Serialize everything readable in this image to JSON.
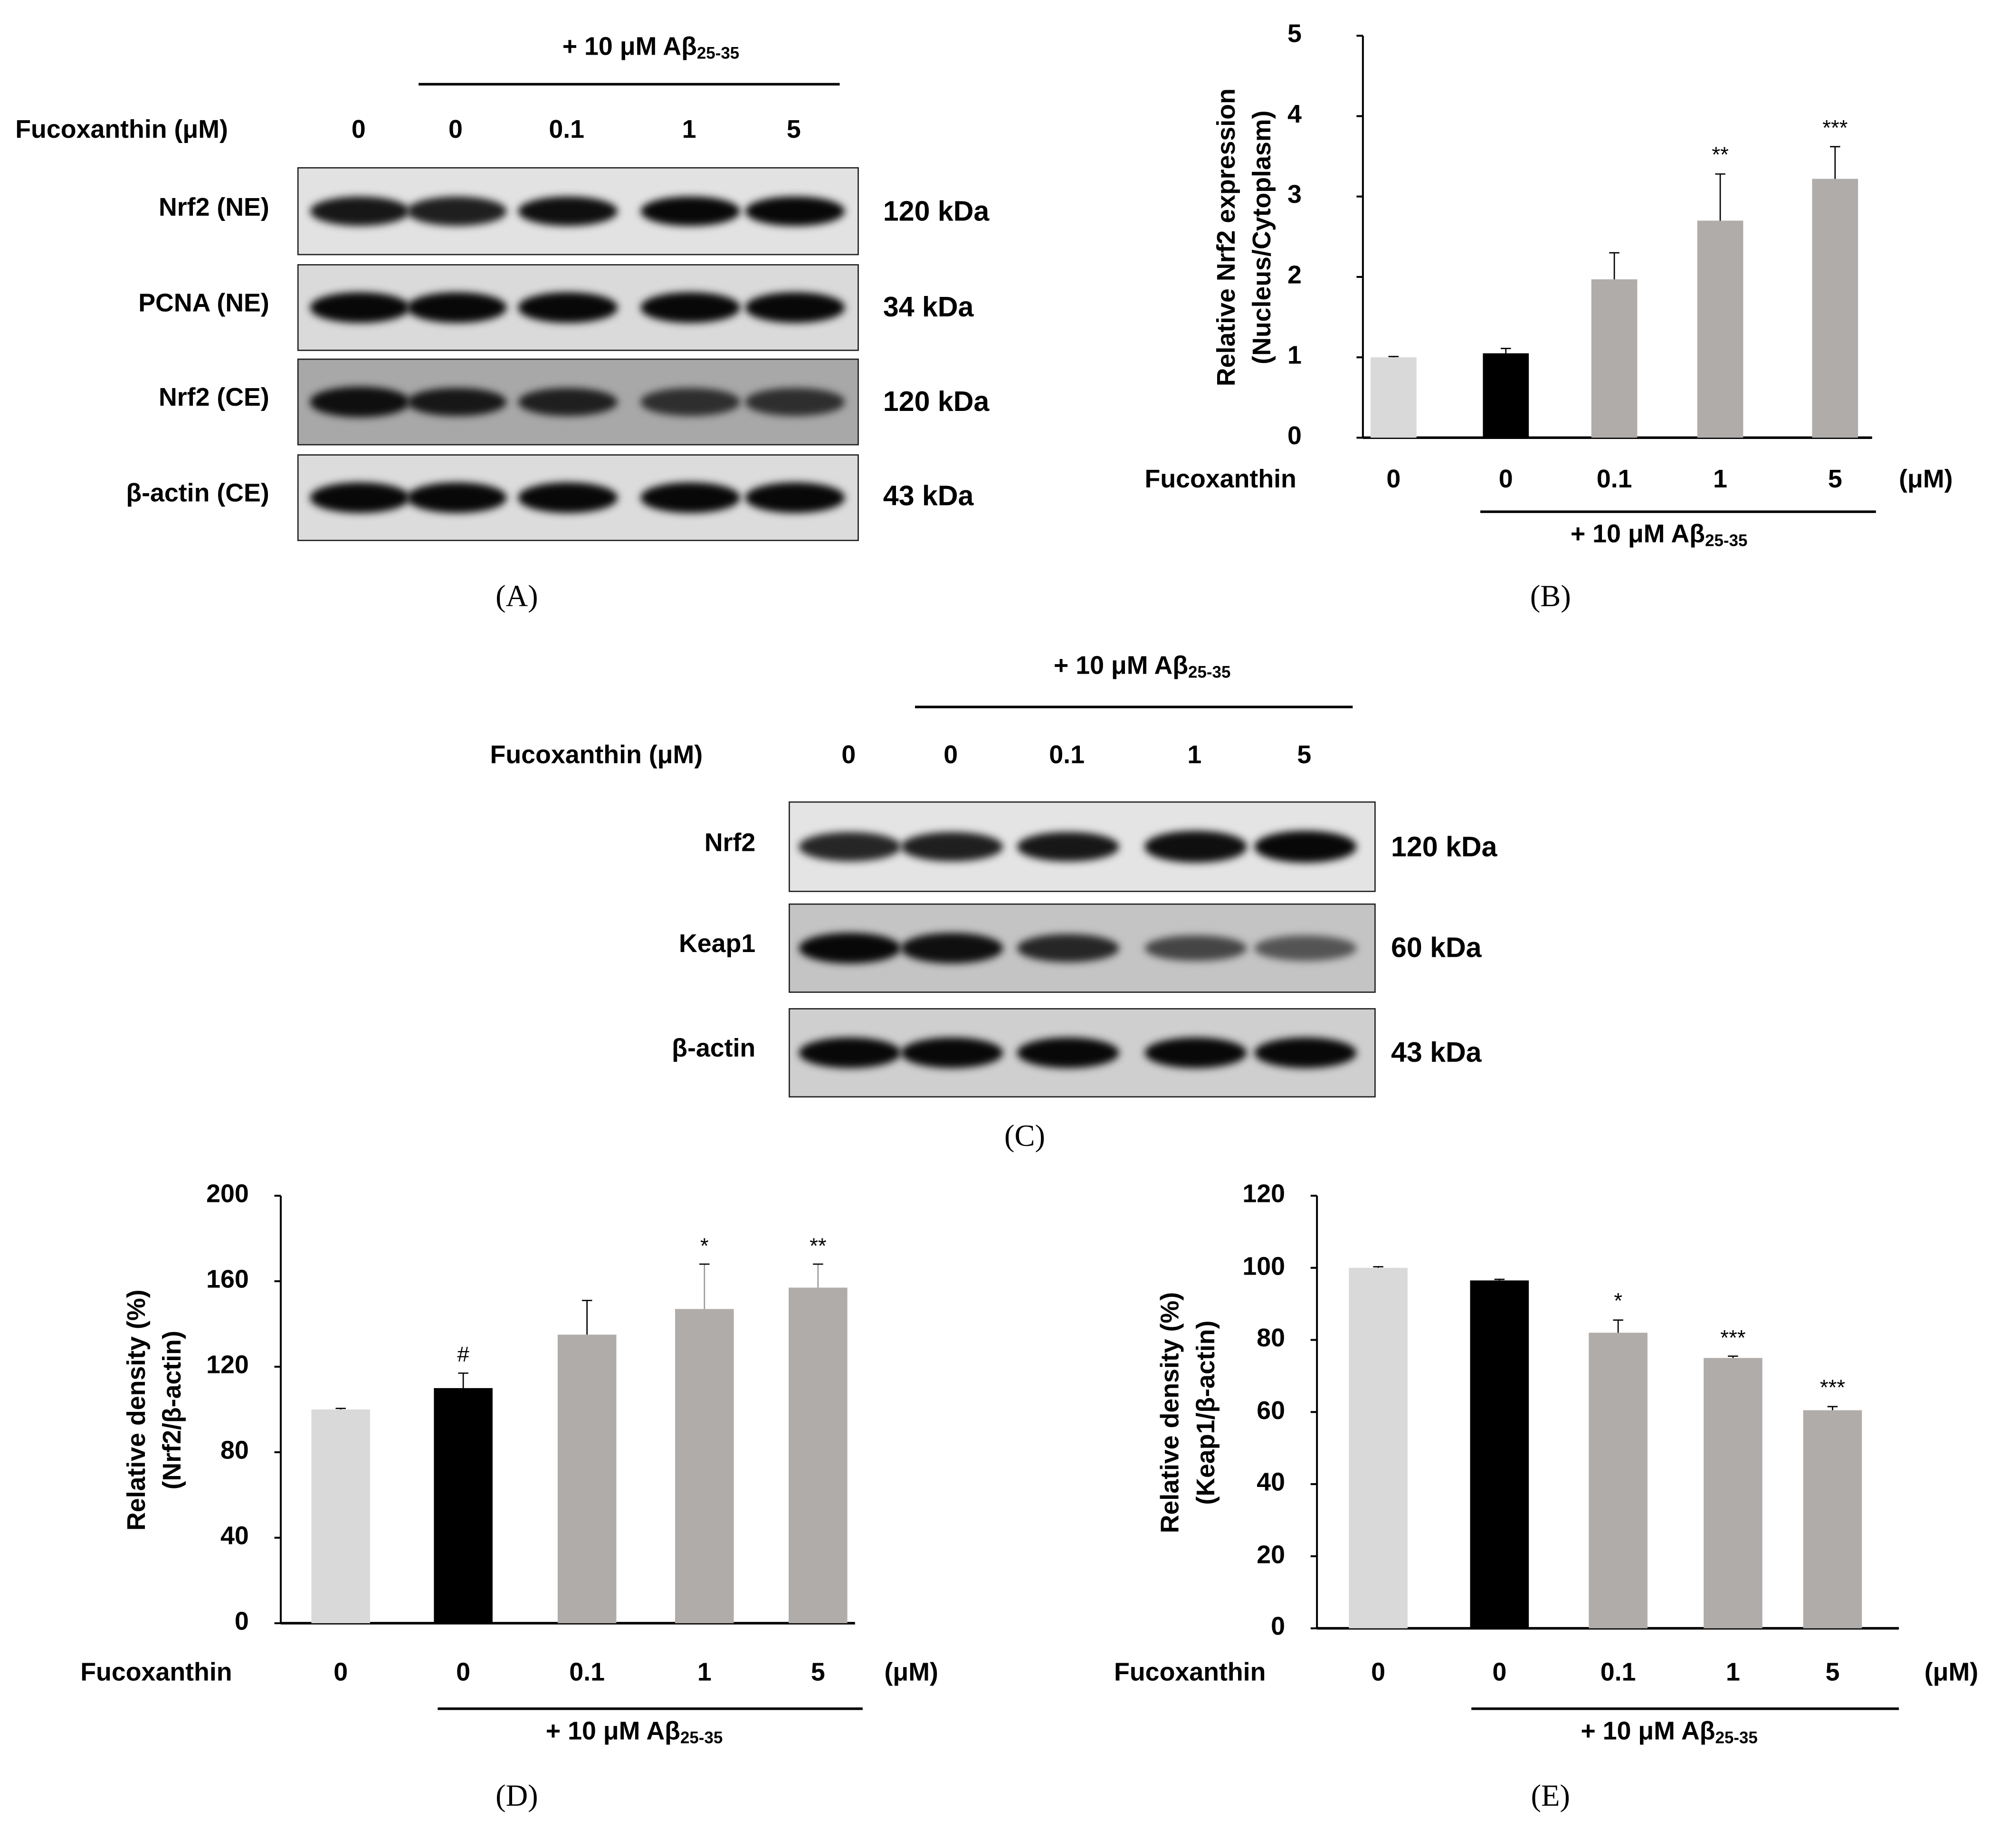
{
  "groups": {
    "treatment_label": "Fucoxanthin",
    "treatment_label_um": "Fucoxanthin (μM)",
    "unit": "(μM)",
    "doses": [
      "0",
      "0",
      "0.1",
      "1",
      "5"
    ],
    "abeta_prefix": "+ 10 μM Aβ",
    "abeta_sub": "25-35"
  },
  "panel_a": {
    "caption": "(A)",
    "rows": [
      {
        "label": "Nrf2 (NE)",
        "kda": "120 kDa",
        "intensity": [
          0.85,
          0.8,
          0.9,
          0.95,
          0.95
        ]
      },
      {
        "label": "PCNA (NE)",
        "kda": "34 kDa",
        "intensity": [
          0.95,
          0.95,
          0.95,
          0.95,
          0.95
        ]
      },
      {
        "label": "Nrf2 (CE)",
        "kda": "120 kDa",
        "intensity": [
          0.9,
          0.85,
          0.8,
          0.7,
          0.7
        ]
      },
      {
        "label": "β-actin (CE)",
        "kda": "43 kDa",
        "intensity": [
          0.95,
          0.95,
          0.95,
          0.95,
          0.95
        ]
      }
    ]
  },
  "panel_c": {
    "caption": "(C)",
    "rows": [
      {
        "label": "Nrf2",
        "kda": "120 kDa",
        "intensity": [
          0.75,
          0.8,
          0.85,
          0.9,
          0.95
        ]
      },
      {
        "label": "Keap1",
        "kda": "60 kDa",
        "intensity": [
          0.95,
          0.9,
          0.75,
          0.55,
          0.45
        ]
      },
      {
        "label": "β-actin",
        "kda": "43 kDa",
        "intensity": [
          0.95,
          0.95,
          0.95,
          0.95,
          0.95
        ]
      }
    ]
  },
  "chart_data": [
    {
      "id": "B",
      "caption": "(B)",
      "type": "bar",
      "ylabel": "Relative Nrf2 expression",
      "ylabel2": "(Nucleus/Cytoplasm)",
      "categories": [
        "0",
        "0",
        "0.1",
        "1",
        "5"
      ],
      "values": [
        1.0,
        1.05,
        1.97,
        2.7,
        3.22
      ],
      "errors": [
        0.01,
        0.06,
        0.33,
        0.58,
        0.4
      ],
      "annotations": [
        "",
        "",
        "",
        "**",
        "***"
      ],
      "ylim": [
        0,
        5
      ],
      "yticks": [
        "0",
        "1",
        "2",
        "3",
        "4",
        "5"
      ],
      "colors": [
        "#d9d9d9",
        "#000000",
        "#b0acaa",
        "#b0acaa",
        "#b0acaa"
      ]
    },
    {
      "id": "D",
      "caption": "(D)",
      "type": "bar",
      "ylabel": "Relative density (%)",
      "ylabel2": "(Nrf2/β-actin)",
      "categories": [
        "0",
        "0",
        "0.1",
        "1",
        "5"
      ],
      "values": [
        100,
        110,
        135,
        147,
        157
      ],
      "errors": [
        0.5,
        7,
        16,
        21,
        11
      ],
      "annotations": [
        "",
        "#",
        "",
        "*",
        "**"
      ],
      "ylim": [
        0,
        200
      ],
      "yticks": [
        "0",
        "40",
        "80",
        "120",
        "160",
        "200"
      ],
      "colors": [
        "#d9d9d9",
        "#000000",
        "#b0acaa",
        "#b0acaa",
        "#b0acaa"
      ]
    },
    {
      "id": "E",
      "caption": "(E)",
      "type": "bar",
      "ylabel": "Relative density (%)",
      "ylabel2": "(Keap1/β-actin)",
      "categories": [
        "0",
        "0",
        "0.1",
        "1",
        "5"
      ],
      "values": [
        100,
        96.5,
        82,
        75,
        60.5
      ],
      "errors": [
        0.3,
        0.3,
        3.5,
        0.5,
        1
      ],
      "annotations": [
        "",
        "",
        "*",
        "***",
        "***"
      ],
      "ylim": [
        0,
        120
      ],
      "yticks": [
        "0",
        "20",
        "40",
        "60",
        "80",
        "100",
        "120"
      ],
      "colors": [
        "#d9d9d9",
        "#000000",
        "#b0acaa",
        "#b0acaa",
        "#b0acaa"
      ]
    }
  ]
}
